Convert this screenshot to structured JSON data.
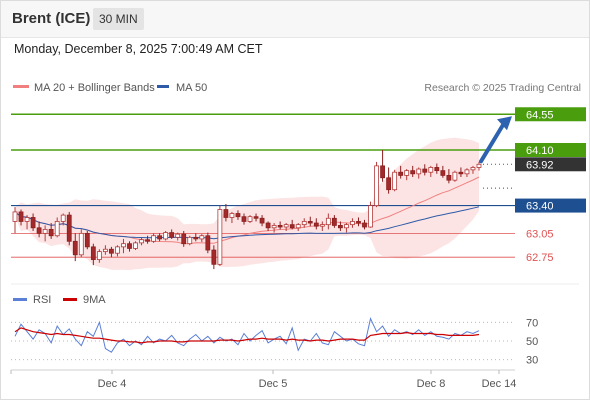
{
  "header": {
    "title": "Brent (ICE)",
    "timeframe": "30 MIN"
  },
  "datetime": "Monday, December 8, 2025 7:00:49 AM CET",
  "credit": "Research © 2025 Trading Central",
  "colors": {
    "up_level": "#4a9e0e",
    "pivot": "#1e4f91",
    "down_level": "#e05252",
    "last_price": "#333333",
    "ma20": "#f08080",
    "ma50": "#2f5aa8",
    "rsi": "#5b7fd6",
    "rsi_ma": "#cc0000",
    "arrow": "#2c62b0"
  },
  "chart_data": [
    {
      "type": "candlestick",
      "title": "",
      "legend": [
        {
          "name": "MA 20 + Bollinger Bands",
          "color": "#f08080"
        },
        {
          "name": "MA 50",
          "color": "#2f5aa8"
        }
      ],
      "x_ticks": [
        "Dec 4",
        "Dec 5",
        "Dec 8",
        "Dec 14"
      ],
      "ylim": [
        62.45,
        64.78
      ],
      "levels": [
        {
          "value": 64.55,
          "label": "64.55",
          "kind": "resistance"
        },
        {
          "value": 64.1,
          "label": "64.10",
          "kind": "resistance"
        },
        {
          "value": 63.4,
          "label": "63.40",
          "kind": "pivot"
        },
        {
          "value": 63.05,
          "label": "63.05",
          "kind": "support"
        },
        {
          "value": 62.75,
          "label": "62.75",
          "kind": "support"
        }
      ],
      "last_price": {
        "value": 63.92,
        "label": "63.92"
      },
      "ohlc_approx": [
        [
          63.2,
          63.38,
          63.05,
          63.32
        ],
        [
          63.32,
          63.35,
          63.15,
          63.2
        ],
        [
          63.2,
          63.28,
          63.1,
          63.25
        ],
        [
          63.25,
          63.3,
          63.08,
          63.12
        ],
        [
          63.12,
          63.2,
          63.0,
          63.05
        ],
        [
          63.05,
          63.15,
          62.95,
          63.1
        ],
        [
          63.1,
          63.18,
          62.98,
          63.02
        ],
        [
          63.02,
          63.25,
          63.0,
          63.2
        ],
        [
          63.2,
          63.3,
          63.15,
          63.28
        ],
        [
          63.28,
          63.32,
          62.9,
          62.95
        ],
        [
          62.95,
          63.05,
          62.7,
          62.78
        ],
        [
          62.78,
          63.1,
          62.75,
          63.05
        ],
        [
          63.05,
          63.08,
          62.85,
          62.88
        ],
        [
          62.88,
          62.92,
          62.65,
          62.72
        ],
        [
          62.72,
          62.85,
          62.68,
          62.82
        ],
        [
          62.82,
          62.9,
          62.78,
          62.85
        ],
        [
          62.85,
          62.88,
          62.75,
          62.8
        ],
        [
          62.8,
          62.9,
          62.76,
          62.88
        ],
        [
          62.88,
          62.98,
          62.8,
          62.92
        ],
        [
          62.92,
          62.95,
          62.82,
          62.86
        ],
        [
          62.86,
          62.95,
          62.84,
          62.93
        ],
        [
          62.93,
          63.0,
          62.9,
          62.97
        ],
        [
          62.97,
          63.02,
          62.92,
          62.95
        ],
        [
          62.95,
          63.05,
          62.93,
          63.02
        ],
        [
          63.02,
          63.05,
          62.95,
          62.98
        ],
        [
          62.98,
          63.08,
          62.96,
          63.06
        ],
        [
          63.06,
          63.1,
          62.98,
          63.0
        ],
        [
          63.0,
          63.06,
          62.96,
          63.04
        ],
        [
          63.04,
          63.08,
          62.88,
          62.92
        ],
        [
          62.92,
          63.02,
          62.9,
          63.0
        ],
        [
          63.0,
          63.05,
          62.95,
          62.98
        ],
        [
          62.98,
          63.04,
          62.94,
          63.02
        ],
        [
          63.02,
          63.06,
          62.8,
          62.84
        ],
        [
          62.84,
          62.9,
          62.6,
          62.66
        ],
        [
          62.66,
          63.4,
          62.64,
          63.35
        ],
        [
          63.35,
          63.42,
          63.2,
          63.25
        ],
        [
          63.25,
          63.32,
          63.18,
          63.3
        ],
        [
          63.3,
          63.34,
          63.22,
          63.26
        ],
        [
          63.26,
          63.3,
          63.16,
          63.2
        ],
        [
          63.2,
          63.28,
          63.18,
          63.26
        ],
        [
          63.26,
          63.3,
          63.2,
          63.24
        ],
        [
          63.24,
          63.28,
          63.14,
          63.18
        ],
        [
          63.18,
          63.2,
          63.08,
          63.12
        ],
        [
          63.12,
          63.18,
          63.06,
          63.15
        ],
        [
          63.15,
          63.2,
          63.1,
          63.13
        ],
        [
          63.13,
          63.18,
          63.08,
          63.16
        ],
        [
          63.16,
          63.22,
          63.1,
          63.12
        ],
        [
          63.12,
          63.18,
          63.08,
          63.16
        ],
        [
          63.16,
          63.24,
          63.12,
          63.2
        ],
        [
          63.2,
          63.26,
          63.14,
          63.18
        ],
        [
          63.18,
          63.24,
          63.1,
          63.14
        ],
        [
          63.14,
          63.2,
          63.08,
          63.16
        ],
        [
          63.16,
          63.3,
          63.1,
          63.24
        ],
        [
          63.24,
          63.28,
          63.12,
          63.15
        ],
        [
          63.15,
          63.2,
          63.08,
          63.12
        ],
        [
          63.12,
          63.18,
          63.06,
          63.16
        ],
        [
          63.16,
          63.24,
          63.12,
          63.2
        ],
        [
          63.2,
          63.25,
          63.14,
          63.18
        ],
        [
          63.18,
          63.22,
          63.1,
          63.13
        ],
        [
          63.13,
          63.45,
          63.12,
          63.4
        ],
        [
          63.4,
          63.95,
          63.38,
          63.9
        ],
        [
          63.9,
          64.1,
          63.7,
          63.75
        ],
        [
          63.75,
          63.88,
          63.55,
          63.6
        ],
        [
          63.6,
          63.85,
          63.58,
          63.82
        ],
        [
          63.82,
          63.9,
          63.74,
          63.78
        ],
        [
          63.78,
          63.86,
          63.72,
          63.84
        ],
        [
          63.84,
          63.9,
          63.76,
          63.8
        ],
        [
          63.8,
          63.88,
          63.74,
          63.86
        ],
        [
          63.86,
          63.92,
          63.78,
          63.82
        ],
        [
          63.82,
          63.9,
          63.76,
          63.88
        ],
        [
          63.88,
          63.93,
          63.8,
          63.84
        ],
        [
          63.84,
          63.9,
          63.75,
          63.78
        ],
        [
          63.78,
          63.86,
          63.68,
          63.72
        ],
        [
          63.72,
          63.84,
          63.7,
          63.82
        ],
        [
          63.82,
          63.88,
          63.76,
          63.8
        ],
        [
          63.8,
          63.87,
          63.76,
          63.85
        ],
        [
          63.85,
          63.9,
          63.8,
          63.88
        ],
        [
          63.88,
          63.95,
          63.84,
          63.92
        ]
      ],
      "projection": {
        "from": 63.92,
        "to": 64.55
      }
    },
    {
      "type": "line",
      "title": "",
      "legend": [
        {
          "name": "RSI",
          "color": "#5b7fd6"
        },
        {
          "name": "9MA",
          "color": "#cc0000"
        }
      ],
      "ylim": [
        20,
        80
      ],
      "y_ticks": [
        "70",
        "50",
        "30"
      ],
      "reference_lines": [
        70,
        50,
        30
      ],
      "series": [
        {
          "name": "RSI",
          "values": [
            55,
            68,
            60,
            52,
            62,
            58,
            48,
            66,
            57,
            63,
            52,
            45,
            60,
            55,
            70,
            42,
            38,
            48,
            52,
            45,
            50,
            46,
            55,
            48,
            52,
            50,
            56,
            48,
            45,
            52,
            57,
            50,
            55,
            48,
            54,
            50,
            52,
            46,
            58,
            50,
            56,
            61,
            48,
            52,
            55,
            47,
            64,
            40,
            52,
            50,
            58,
            48,
            46,
            60,
            55,
            50,
            52,
            47,
            45,
            74,
            60,
            66,
            55,
            62,
            58,
            60,
            57,
            62,
            56,
            60,
            55,
            54,
            52,
            58,
            56,
            60,
            58,
            61
          ]
        },
        {
          "name": "9MA",
          "values": [
            60,
            64,
            62,
            60,
            59,
            58,
            57,
            58,
            57,
            57,
            56,
            55,
            54,
            53,
            53,
            52,
            51,
            50,
            50,
            49,
            49,
            48,
            49,
            49,
            50,
            50,
            50,
            49,
            49,
            50,
            50,
            50,
            50,
            50,
            51,
            51,
            51,
            50,
            51,
            52,
            52,
            53,
            52,
            52,
            52,
            51,
            52,
            51,
            51,
            50,
            51,
            51,
            50,
            51,
            52,
            52,
            52,
            51,
            51,
            56,
            57,
            58,
            58,
            58,
            58,
            59,
            58,
            58,
            58,
            58,
            57,
            57,
            56,
            56,
            56,
            56,
            56,
            57
          ]
        }
      ]
    }
  ]
}
